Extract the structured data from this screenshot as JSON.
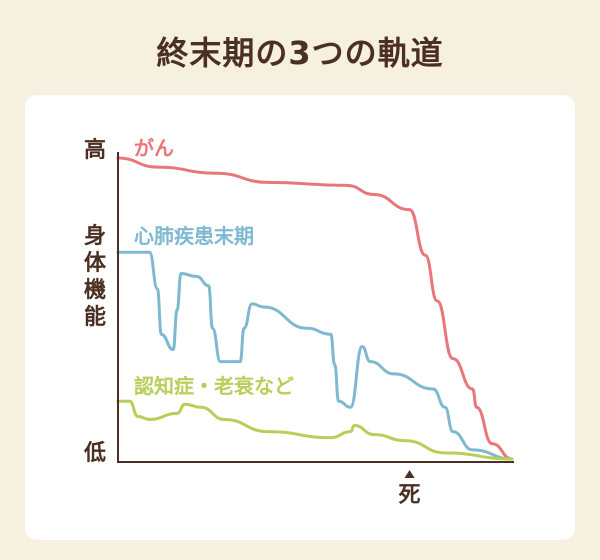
{
  "title": "終末期の3つの軌道",
  "chart_data": {
    "type": "line",
    "ylabel": "身体機能",
    "y_top_label": "高",
    "y_bottom_label": "低",
    "x_marker_label": "死",
    "x_marker_value": 74,
    "xlim": [
      0,
      100
    ],
    "ylim": [
      0,
      100
    ],
    "grid": false,
    "series": [
      {
        "name": "がん",
        "color": "#e8767a",
        "points": [
          [
            0,
            100
          ],
          [
            10,
            97
          ],
          [
            25,
            95
          ],
          [
            38,
            92
          ],
          [
            58,
            91
          ],
          [
            65,
            88
          ],
          [
            74,
            83
          ],
          [
            78,
            68
          ],
          [
            81,
            53
          ],
          [
            85,
            34
          ],
          [
            90,
            24
          ],
          [
            91,
            18
          ],
          [
            95,
            6
          ],
          [
            100,
            1
          ]
        ]
      },
      {
        "name": "心肺疾患末期",
        "color": "#7fb9d1",
        "points": [
          [
            0,
            69
          ],
          [
            8,
            69
          ],
          [
            10,
            57
          ],
          [
            11,
            42
          ],
          [
            14,
            37
          ],
          [
            15,
            50
          ],
          [
            16,
            62
          ],
          [
            20,
            61
          ],
          [
            23,
            58
          ],
          [
            24,
            44
          ],
          [
            26,
            33
          ],
          [
            31,
            33
          ],
          [
            32,
            44
          ],
          [
            34,
            52
          ],
          [
            37,
            51
          ],
          [
            48,
            44
          ],
          [
            54,
            42
          ],
          [
            55,
            32
          ],
          [
            56,
            20
          ],
          [
            59,
            18
          ],
          [
            62,
            38
          ],
          [
            64,
            33
          ],
          [
            70,
            29
          ],
          [
            80,
            24
          ],
          [
            83,
            18
          ],
          [
            85,
            10
          ],
          [
            90,
            4
          ],
          [
            100,
            1
          ]
        ]
      },
      {
        "name": "認知症・老衰など",
        "color": "#b6cf58",
        "points": [
          [
            0,
            20
          ],
          [
            3,
            20
          ],
          [
            5,
            15
          ],
          [
            8,
            14
          ],
          [
            15,
            16
          ],
          [
            17,
            19
          ],
          [
            21,
            18
          ],
          [
            27,
            14
          ],
          [
            38,
            10
          ],
          [
            54,
            8
          ],
          [
            59,
            10
          ],
          [
            60,
            12
          ],
          [
            65,
            9
          ],
          [
            73,
            7
          ],
          [
            83,
            3
          ],
          [
            100,
            1
          ]
        ]
      }
    ]
  }
}
